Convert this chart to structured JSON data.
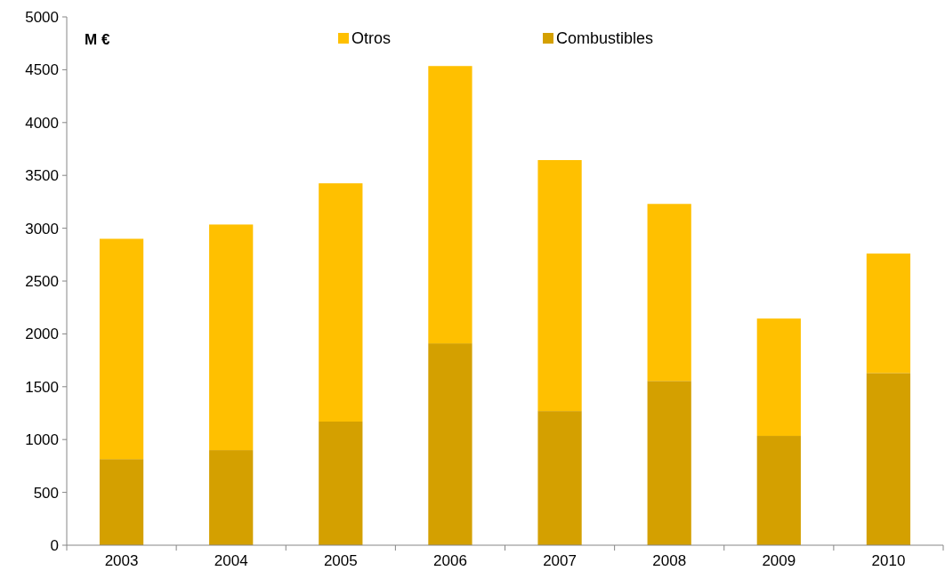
{
  "chart_data": {
    "type": "bar",
    "stacked": true,
    "categories": [
      "2003",
      "2004",
      "2005",
      "2006",
      "2007",
      "2008",
      "2009",
      "2010"
    ],
    "series": [
      {
        "name": "Combustibles",
        "color": "#d4a000",
        "values": [
          815,
          900,
          1170,
          1910,
          1270,
          1555,
          1035,
          1630
        ]
      },
      {
        "name": "Otros",
        "color": "#ffc000",
        "values": [
          2085,
          2135,
          2255,
          2625,
          2375,
          1675,
          1110,
          1130
        ]
      }
    ],
    "ylim": [
      0,
      5000
    ],
    "yticks": [
      0,
      500,
      1000,
      1500,
      2000,
      2500,
      3000,
      3500,
      4000,
      4500,
      5000
    ],
    "annotations": [
      "M €"
    ],
    "legend": "top",
    "grid": false
  }
}
